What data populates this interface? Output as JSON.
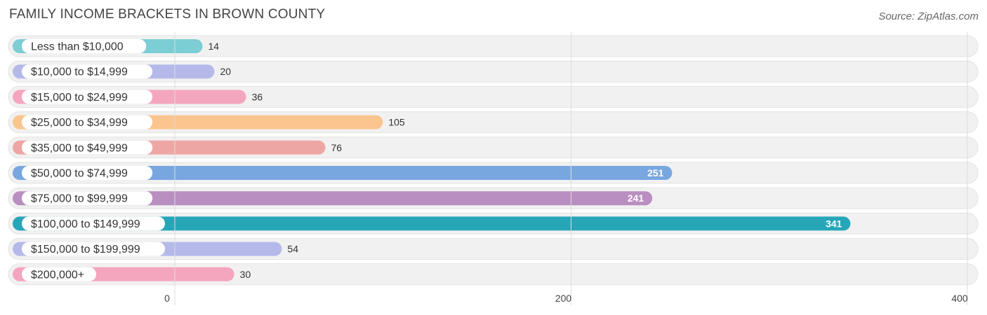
{
  "chart_data": {
    "type": "bar",
    "orientation": "horizontal",
    "title": "FAMILY INCOME BRACKETS IN BROWN COUNTY",
    "source": "Source: ZipAtlas.com",
    "categories": [
      "Less than $10,000",
      "$10,000 to $14,999",
      "$15,000 to $24,999",
      "$25,000 to $34,999",
      "$35,000 to $49,999",
      "$50,000 to $74,999",
      "$75,000 to $99,999",
      "$100,000 to $149,999",
      "$150,000 to $199,999",
      "$200,000+"
    ],
    "values": [
      14,
      20,
      36,
      105,
      76,
      251,
      241,
      341,
      54,
      30
    ],
    "colors": [
      "#7ccdd4",
      "#b5b9ea",
      "#f5a6bf",
      "#fbc58f",
      "#eea6a5",
      "#78a7e0",
      "#b98ec0",
      "#27a6b8",
      "#b5b9ea",
      "#f5a6bf"
    ],
    "xlim": [
      0,
      400
    ],
    "xticks": [
      0,
      200,
      400
    ],
    "xtick_labels": [
      "0",
      "200",
      "400"
    ],
    "grid": true,
    "xlabel": "",
    "ylabel": ""
  }
}
